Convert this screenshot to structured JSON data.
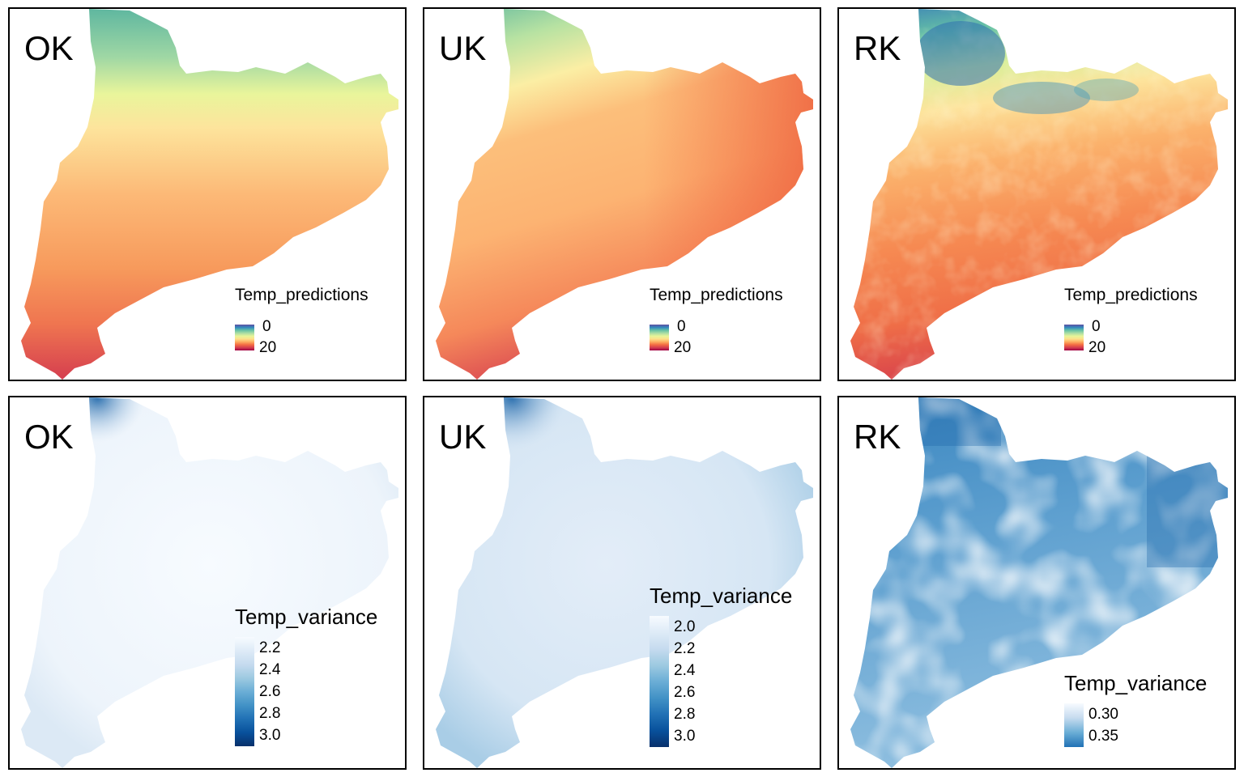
{
  "figure": {
    "panels": [
      {
        "id": "ok_pred",
        "title": "OK",
        "legend": {
          "title": "Temp_predictions",
          "ticks": [
            "0",
            "20"
          ],
          "palette": "spectral",
          "range": [
            0,
            20
          ]
        }
      },
      {
        "id": "uk_pred",
        "title": "UK",
        "legend": {
          "title": "Temp_predictions",
          "ticks": [
            "0",
            "20"
          ],
          "palette": "spectral",
          "range": [
            0,
            20
          ]
        }
      },
      {
        "id": "rk_pred",
        "title": "RK",
        "legend": {
          "title": "Temp_predictions",
          "ticks": [
            "0",
            "20"
          ],
          "palette": "spectral",
          "range": [
            0,
            20
          ]
        }
      },
      {
        "id": "ok_var",
        "title": "OK",
        "legend": {
          "title": "Temp_variance",
          "ticks": [
            "2.2",
            "2.4",
            "2.6",
            "2.8",
            "3.0"
          ],
          "palette": "blues",
          "range": [
            2.2,
            3.0
          ]
        }
      },
      {
        "id": "uk_var",
        "title": "UK",
        "legend": {
          "title": "Temp_variance",
          "ticks": [
            "2.0",
            "2.2",
            "2.4",
            "2.6",
            "2.8",
            "3.0"
          ],
          "palette": "blues",
          "range": [
            2.0,
            3.0
          ]
        }
      },
      {
        "id": "rk_var",
        "title": "RK",
        "legend": {
          "title": "Temp_variance",
          "ticks": [
            "0.30",
            "0.35"
          ],
          "palette": "blues",
          "range": [
            0.3,
            0.35
          ]
        }
      }
    ],
    "colors": {
      "spectral": [
        "#5e4fa2",
        "#3288bd",
        "#66c2a5",
        "#abdda4",
        "#e6f598",
        "#fee08b",
        "#fdae61",
        "#f46d43",
        "#d53e4f",
        "#9e0142"
      ],
      "blues": [
        "#f7fbff",
        "#deebf7",
        "#c6dbef",
        "#9ecae1",
        "#6baed6",
        "#4292c6",
        "#2171b5",
        "#08519c",
        "#08306b"
      ]
    }
  }
}
